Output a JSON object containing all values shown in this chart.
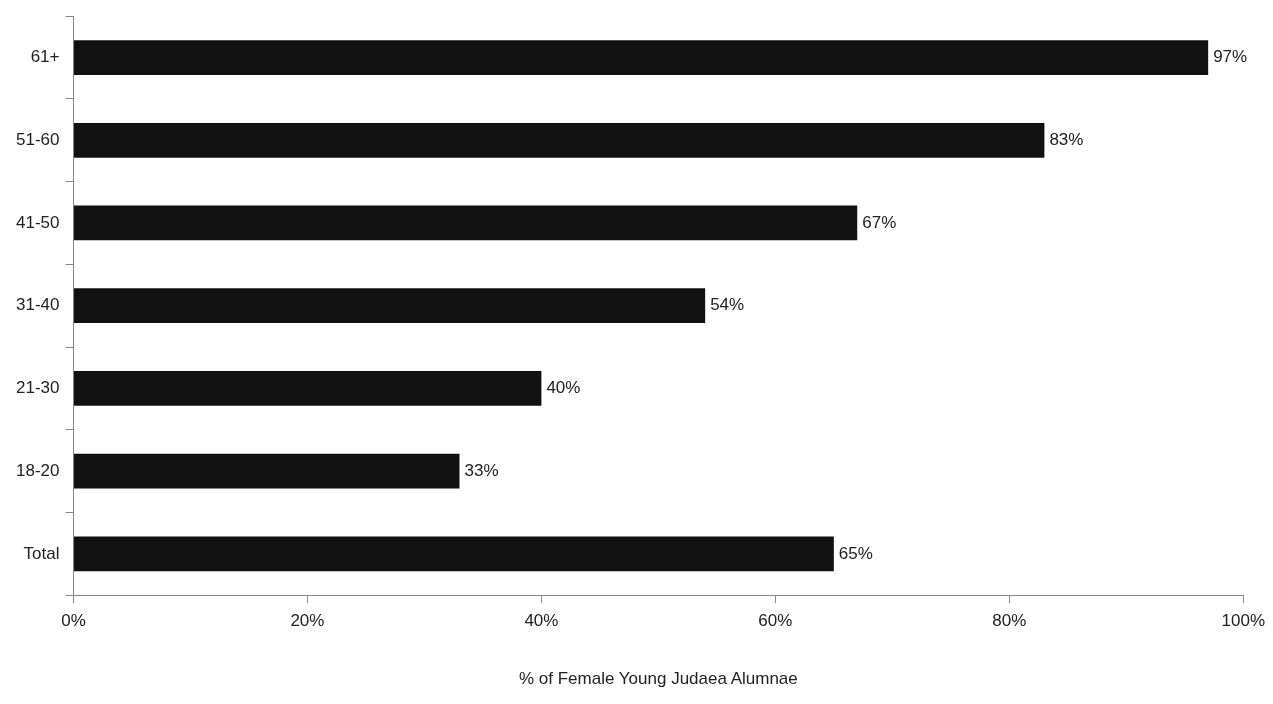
{
  "chart_data": {
    "type": "bar",
    "orientation": "horizontal",
    "xlabel": "% of Female Young Judaea Alumnae",
    "categories": [
      "61+",
      "51-60",
      "41-50",
      "31-40",
      "21-30",
      "18-20",
      "Total"
    ],
    "values": [
      97,
      83,
      67,
      54,
      40,
      33,
      65
    ],
    "value_labels": [
      "97%",
      "83%",
      "67%",
      "54%",
      "40%",
      "33%",
      "65%"
    ],
    "color": "#111111",
    "xlim": [
      0,
      100
    ],
    "xticks": [
      {
        "value": 0,
        "label": "0%"
      },
      {
        "value": 20,
        "label": "20%"
      },
      {
        "value": 40,
        "label": "40%"
      },
      {
        "value": 60,
        "label": "60%"
      },
      {
        "value": 80,
        "label": "80%"
      },
      {
        "value": 100,
        "label": "100%"
      }
    ],
    "grid": false,
    "legend": false
  }
}
